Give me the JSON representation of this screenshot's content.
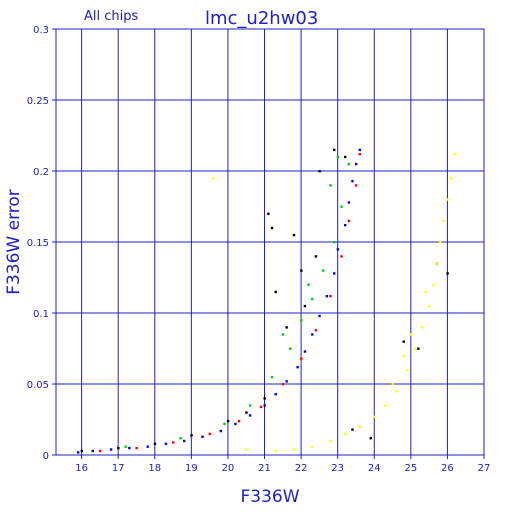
{
  "chart_data": {
    "type": "scatter",
    "title": "lmc_u2hw03",
    "subtitle": "All chips",
    "xlabel": "F336W",
    "ylabel": "F336W error",
    "xlim": [
      15.3,
      27
    ],
    "ylim": [
      0,
      0.3
    ],
    "xticks": [
      "16",
      "17",
      "18",
      "19",
      "20",
      "21",
      "22",
      "23",
      "24",
      "25",
      "26",
      "27"
    ],
    "yticks": [
      "0",
      "0.05",
      "0.1",
      "0.15",
      "0.2",
      "0.25",
      "0.3"
    ],
    "grid": true,
    "colors": {
      "axis": "#2020c0",
      "grid": "#2020c0",
      "series": [
        "#0000ff",
        "#ff0000",
        "#00cc00",
        "#000000",
        "#ffff00"
      ]
    },
    "series": [
      {
        "color": "#0000ff",
        "x": [
          15.9,
          16.3,
          16.8,
          17.3,
          17.8,
          18.3,
          18.8,
          19.3,
          19.8,
          20.2,
          20.6,
          21.0,
          21.3,
          21.6,
          21.9,
          22.1,
          22.3,
          22.5,
          22.7,
          22.9,
          23.0,
          23.2,
          23.3,
          23.4,
          23.5,
          23.6
        ],
        "y": [
          0.002,
          0.003,
          0.004,
          0.005,
          0.006,
          0.008,
          0.01,
          0.013,
          0.017,
          0.022,
          0.028,
          0.035,
          0.043,
          0.052,
          0.062,
          0.073,
          0.085,
          0.098,
          0.112,
          0.128,
          0.145,
          0.162,
          0.178,
          0.193,
          0.205,
          0.215
        ]
      },
      {
        "color": "#ff0000",
        "x": [
          16.5,
          17.5,
          18.5,
          19.5,
          20.3,
          20.9,
          21.5,
          22.0,
          22.4,
          22.8,
          23.1,
          23.3,
          23.5,
          23.6
        ],
        "y": [
          0.003,
          0.005,
          0.009,
          0.015,
          0.024,
          0.034,
          0.05,
          0.068,
          0.088,
          0.112,
          0.14,
          0.165,
          0.19,
          0.212
        ]
      },
      {
        "color": "#00cc00",
        "x": [
          17.2,
          18.7,
          19.9,
          20.6,
          21.2,
          21.7,
          22.0,
          22.3,
          22.6,
          22.9,
          23.1,
          23.3,
          21.5,
          22.2,
          22.8,
          23.0
        ],
        "y": [
          0.006,
          0.012,
          0.022,
          0.035,
          0.055,
          0.075,
          0.095,
          0.11,
          0.13,
          0.15,
          0.175,
          0.205,
          0.085,
          0.12,
          0.19,
          0.21
        ]
      },
      {
        "color": "#000000",
        "x": [
          16.0,
          17.0,
          18.0,
          19.0,
          20.0,
          20.5,
          21.0,
          21.1,
          21.2,
          21.8,
          22.0,
          22.4,
          22.5,
          22.9,
          23.2,
          21.3,
          21.6,
          22.1,
          25.7,
          26.0,
          23.4,
          23.9,
          24.8,
          25.2
        ],
        "y": [
          0.003,
          0.005,
          0.008,
          0.014,
          0.024,
          0.03,
          0.04,
          0.17,
          0.16,
          0.155,
          0.13,
          0.14,
          0.2,
          0.215,
          0.21,
          0.115,
          0.09,
          0.105,
          0.135,
          0.128,
          0.018,
          0.012,
          0.08,
          0.075
        ]
      },
      {
        "color": "#ffff00",
        "x": [
          19.6,
          20.5,
          21.3,
          21.8,
          22.3,
          22.8,
          23.2,
          23.6,
          24.0,
          24.3,
          24.6,
          24.9,
          25.1,
          25.3,
          25.5,
          25.6,
          25.7,
          25.8,
          25.9,
          26.0,
          26.1,
          26.2,
          24.5,
          24.8,
          25.0,
          25.4
        ],
        "y": [
          0.195,
          0.004,
          0.003,
          0.004,
          0.006,
          0.01,
          0.015,
          0.02,
          0.027,
          0.035,
          0.045,
          0.06,
          0.075,
          0.09,
          0.105,
          0.12,
          0.135,
          0.15,
          0.165,
          0.18,
          0.195,
          0.212,
          0.05,
          0.07,
          0.085,
          0.115
        ]
      }
    ]
  }
}
